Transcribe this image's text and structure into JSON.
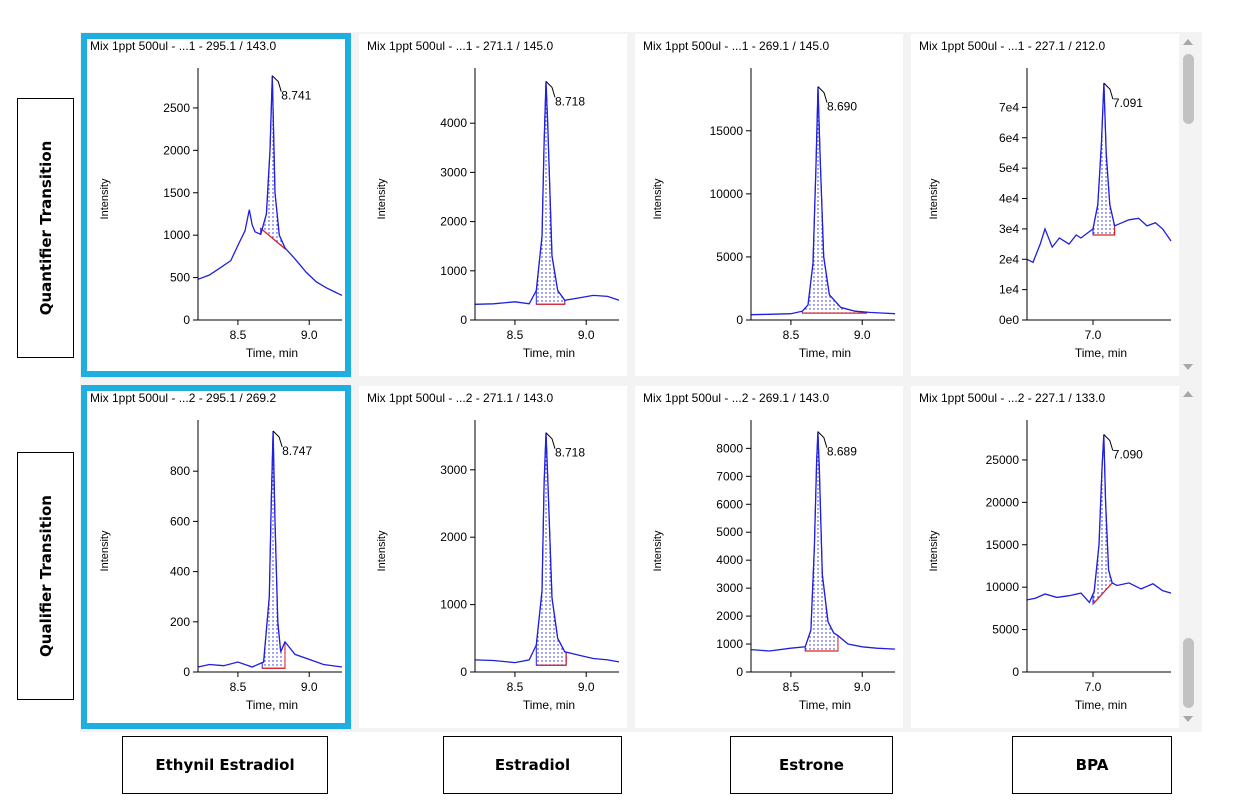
{
  "row_labels": [
    "Quantifier Transition",
    "Qualifier Transition"
  ],
  "column_labels": [
    "Ethynil Estradiol",
    "Estradiol",
    "Estrone",
    "BPA"
  ],
  "colors": {
    "trace": "#1f1fe0",
    "baseline": "#e02020",
    "selection": "#1eaee0",
    "axis": "#000000"
  },
  "icons": {
    "scroll_up": "triangle-up-icon",
    "scroll_down": "triangle-down-icon"
  },
  "chart_data": [
    {
      "type": "line",
      "title": "Mix 1ppt 500ul - ...1 - 295.1 / 143.0",
      "xlabel": "Time, min",
      "ylabel": "Intensity",
      "xlim": [
        8.22,
        9.23
      ],
      "ylim": [
        0,
        2900
      ],
      "xticks": [
        8.5,
        9.0
      ],
      "yticks": [
        0,
        500,
        1000,
        1500,
        2000,
        2500
      ],
      "ytick_labels": [
        "0",
        "500",
        "1000",
        "1500",
        "2000",
        "2500"
      ],
      "peak_label": "8.741",
      "selected": true,
      "x": [
        8.22,
        8.3,
        8.38,
        8.45,
        8.5,
        8.55,
        8.58,
        8.6,
        8.62,
        8.66,
        8.7,
        8.725,
        8.741,
        8.76,
        8.79,
        8.83,
        8.9,
        8.98,
        9.05,
        9.12,
        9.18,
        9.23
      ],
      "y": [
        480,
        530,
        620,
        700,
        880,
        1050,
        1300,
        1120,
        1040,
        1010,
        1250,
        2000,
        2880,
        1500,
        1000,
        850,
        720,
        560,
        450,
        380,
        330,
        290
      ],
      "integration": {
        "start": 8.66,
        "end": 8.83,
        "base_start": 1080,
        "base_end": 840
      }
    },
    {
      "type": "line",
      "title": "Mix 1ppt 500ul - ...1 - 271.1 / 145.0",
      "xlabel": "Time, min",
      "ylabel": "Intensity",
      "xlim": [
        8.22,
        9.23
      ],
      "ylim": [
        0,
        5000
      ],
      "xticks": [
        8.5,
        9.0
      ],
      "yticks": [
        0,
        1000,
        2000,
        3000,
        4000
      ],
      "ytick_labels": [
        "0",
        "1000",
        "2000",
        "3000",
        "4000"
      ],
      "peak_label": "8.718",
      "selected": false,
      "x": [
        8.22,
        8.35,
        8.5,
        8.6,
        8.65,
        8.69,
        8.705,
        8.718,
        8.73,
        8.76,
        8.8,
        8.85,
        8.95,
        9.05,
        9.15,
        9.23
      ],
      "y": [
        320,
        330,
        370,
        330,
        600,
        1700,
        3600,
        4850,
        4000,
        1300,
        600,
        400,
        450,
        500,
        480,
        400
      ],
      "integration": {
        "start": 8.65,
        "end": 8.85,
        "base_start": 320,
        "base_end": 320
      }
    },
    {
      "type": "line",
      "title": "Mix 1ppt 500ul - ...1 - 269.1 / 145.0",
      "xlabel": "Time, min",
      "ylabel": "Intensity",
      "xlim": [
        8.22,
        9.23
      ],
      "ylim": [
        0,
        19500
      ],
      "xticks": [
        8.5,
        9.0
      ],
      "yticks": [
        0,
        5000,
        10000,
        15000
      ],
      "ytick_labels": [
        "0",
        "5000",
        "10000",
        "15000"
      ],
      "peak_label": "8.690",
      "selected": false,
      "x": [
        8.22,
        8.35,
        8.5,
        8.58,
        8.62,
        8.655,
        8.675,
        8.69,
        8.705,
        8.73,
        8.77,
        8.85,
        8.95,
        9.05,
        9.15,
        9.23
      ],
      "y": [
        420,
        450,
        500,
        700,
        1200,
        4500,
        12000,
        18500,
        13000,
        5000,
        2000,
        1000,
        700,
        600,
        550,
        500
      ],
      "integration": {
        "start": 8.58,
        "end": 9.03,
        "base_start": 550,
        "base_end": 550
      }
    },
    {
      "type": "line",
      "title": "Mix 1ppt 500ul - ...1 - 227.1 / 212.0",
      "xlabel": "Time, min",
      "ylabel": "Intensity",
      "xlim": [
        6.45,
        7.65
      ],
      "ylim": [
        0,
        81000
      ],
      "xticks": [
        7.0
      ],
      "yticks": [
        0,
        10000,
        20000,
        30000,
        40000,
        50000,
        60000,
        70000
      ],
      "ytick_labels": [
        "0e0",
        "1e4",
        "2e4",
        "3e4",
        "4e4",
        "5e4",
        "6e4",
        "7e4"
      ],
      "peak_label": "7.091",
      "selected": false,
      "x": [
        6.45,
        6.5,
        6.56,
        6.6,
        6.66,
        6.72,
        6.8,
        6.86,
        6.9,
        6.95,
        7.0,
        7.04,
        7.07,
        7.091,
        7.11,
        7.14,
        7.18,
        7.24,
        7.3,
        7.38,
        7.45,
        7.52,
        7.58,
        7.65
      ],
      "y": [
        20000,
        19000,
        25000,
        30000,
        24000,
        27000,
        25000,
        28000,
        27000,
        28500,
        30000,
        38000,
        58000,
        78000,
        55000,
        38000,
        31000,
        32000,
        33000,
        33500,
        31000,
        32000,
        30000,
        26000
      ],
      "integration": {
        "start": 7.0,
        "end": 7.18,
        "base_start": 28000,
        "base_end": 28000
      }
    },
    {
      "type": "line",
      "title": "Mix 1ppt 500ul - ...2 - 295.1 / 269.2",
      "xlabel": "Time, min",
      "ylabel": "Intensity",
      "xlim": [
        8.22,
        9.23
      ],
      "ylim": [
        0,
        980
      ],
      "xticks": [
        8.5,
        9.0
      ],
      "yticks": [
        0,
        200,
        400,
        600,
        800
      ],
      "ytick_labels": [
        "0",
        "200",
        "400",
        "600",
        "800"
      ],
      "peak_label": "8.747",
      "selected": true,
      "x": [
        8.22,
        8.3,
        8.4,
        8.5,
        8.6,
        8.68,
        8.72,
        8.735,
        8.747,
        8.76,
        8.78,
        8.8,
        8.83,
        8.9,
        9.0,
        9.1,
        9.23
      ],
      "y": [
        20,
        30,
        25,
        40,
        20,
        40,
        300,
        700,
        960,
        600,
        200,
        80,
        120,
        70,
        50,
        30,
        20
      ],
      "integration": {
        "start": 8.67,
        "end": 8.83,
        "base_start": 15,
        "base_end": 15
      }
    },
    {
      "type": "line",
      "title": "Mix 1ppt 500ul - ...2 - 271.1 / 143.0",
      "xlabel": "Time, min",
      "ylabel": "Intensity",
      "xlim": [
        8.22,
        9.23
      ],
      "ylim": [
        0,
        3650
      ],
      "xticks": [
        8.5,
        9.0
      ],
      "yticks": [
        0,
        1000,
        2000,
        3000
      ],
      "ytick_labels": [
        "0",
        "1000",
        "2000",
        "3000"
      ],
      "peak_label": "8.718",
      "selected": false,
      "x": [
        8.22,
        8.35,
        8.5,
        8.6,
        8.65,
        8.69,
        8.705,
        8.718,
        8.73,
        8.76,
        8.8,
        8.85,
        8.95,
        9.05,
        9.15,
        9.23
      ],
      "y": [
        180,
        170,
        140,
        180,
        400,
        1200,
        2800,
        3550,
        2900,
        1100,
        500,
        300,
        250,
        200,
        180,
        150
      ],
      "integration": {
        "start": 8.65,
        "end": 8.86,
        "base_start": 100,
        "base_end": 100
      }
    },
    {
      "type": "line",
      "title": "Mix 1ppt 500ul - ...2 - 269.1 / 143.0",
      "xlabel": "Time, min",
      "ylabel": "Intensity",
      "xlim": [
        8.22,
        9.23
      ],
      "ylim": [
        0,
        8800
      ],
      "xticks": [
        8.5,
        9.0
      ],
      "yticks": [
        0,
        1000,
        2000,
        3000,
        4000,
        5000,
        6000,
        7000,
        8000
      ],
      "ytick_labels": [
        "0",
        "1000",
        "2000",
        "3000",
        "4000",
        "5000",
        "6000",
        "7000",
        "8000"
      ],
      "peak_label": "8.689",
      "selected": false,
      "x": [
        8.22,
        8.35,
        8.5,
        8.6,
        8.64,
        8.665,
        8.68,
        8.689,
        8.7,
        8.72,
        8.76,
        8.8,
        8.83,
        8.9,
        9.0,
        9.1,
        9.23
      ],
      "y": [
        800,
        750,
        850,
        900,
        1500,
        4500,
        7500,
        8600,
        7200,
        3500,
        1800,
        1400,
        1300,
        1000,
        900,
        850,
        820
      ],
      "integration": {
        "start": 8.6,
        "end": 8.83,
        "base_start": 750,
        "base_end": 750
      }
    },
    {
      "type": "line",
      "title": "Mix 1ppt 500ul - ...2 - 227.1 / 133.0",
      "xlabel": "Time, min",
      "ylabel": "Intensity",
      "xlim": [
        6.45,
        7.65
      ],
      "ylim": [
        0,
        29000
      ],
      "xticks": [
        7.0
      ],
      "yticks": [
        0,
        5000,
        10000,
        15000,
        20000,
        25000
      ],
      "ytick_labels": [
        "0",
        "5000",
        "10000",
        "15000",
        "20000",
        "25000"
      ],
      "peak_label": "7.090",
      "selected": false,
      "x": [
        6.45,
        6.52,
        6.6,
        6.7,
        6.8,
        6.9,
        6.97,
        7.01,
        7.05,
        7.075,
        7.09,
        7.105,
        7.13,
        7.16,
        7.2,
        7.3,
        7.4,
        7.5,
        7.58,
        7.65
      ],
      "y": [
        8500,
        8700,
        9200,
        8800,
        9000,
        9300,
        8200,
        9500,
        15000,
        24000,
        28000,
        20000,
        12000,
        10500,
        10200,
        10500,
        9800,
        10400,
        9600,
        9300
      ],
      "integration": {
        "start": 7.0,
        "end": 7.16,
        "base_start": 8000,
        "base_end": 10500
      }
    }
  ]
}
